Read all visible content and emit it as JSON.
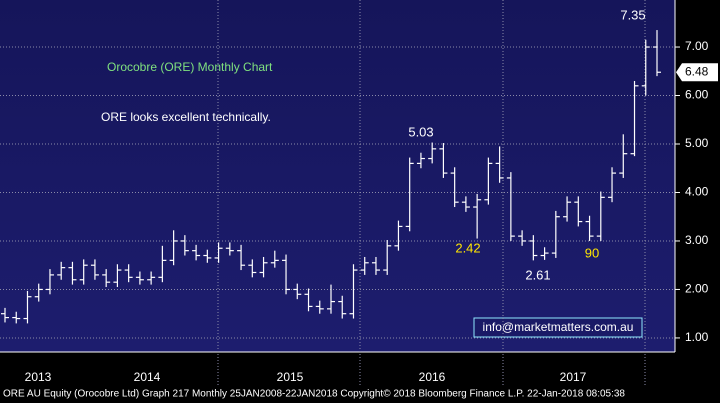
{
  "chart_data": {
    "type": "ohlc",
    "title": "Orocobre (ORE) Monthly Chart",
    "subtitle": "ORE looks excellent technically.",
    "footer": "ORE AU Equity (Orocobre Ltd) Graph 217  Monthly 25JAN2008-22JAN2018  Copyright© 2018 Bloomberg Finance L.P.  22-Jan-2018 08:05:38",
    "watermark": "info@marketmatters.com.au",
    "color": "#ffffff",
    "open": [
      1.5,
      1.42,
      1.4,
      1.85,
      2.0,
      2.3,
      2.45,
      2.2,
      2.5,
      2.3,
      2.15,
      2.4,
      2.25,
      2.2,
      2.25,
      2.6,
      3.0,
      2.8,
      2.7,
      2.65,
      2.85,
      2.8,
      2.5,
      2.35,
      2.55,
      2.6,
      2.0,
      1.9,
      1.65,
      1.6,
      1.75,
      1.5,
      2.4,
      2.55,
      2.4,
      2.9,
      3.3,
      4.6,
      4.7,
      4.9,
      4.4,
      3.8,
      3.7,
      3.85,
      4.6,
      4.3,
      3.1,
      3.0,
      2.7,
      2.75,
      3.5,
      3.8,
      3.4,
      3.1,
      3.9,
      4.4,
      4.8,
      6.2,
      7.0
    ],
    "high": [
      1.62,
      1.54,
      1.97,
      2.12,
      2.42,
      2.57,
      2.57,
      2.62,
      2.62,
      2.42,
      2.52,
      2.52,
      2.37,
      2.37,
      2.9,
      3.22,
      3.12,
      2.92,
      2.82,
      2.97,
      2.97,
      2.92,
      2.62,
      2.67,
      2.8,
      2.72,
      2.12,
      2.02,
      1.77,
      2.1,
      1.87,
      2.52,
      2.67,
      2.67,
      3.02,
      3.42,
      4.72,
      4.82,
      5.03,
      5.02,
      4.52,
      3.92,
      3.97,
      4.72,
      4.95,
      4.42,
      3.22,
      3.12,
      2.87,
      3.62,
      3.92,
      3.92,
      3.52,
      4.02,
      4.52,
      5.2,
      6.3,
      7.15,
      7.35
    ],
    "low": [
      1.32,
      1.3,
      1.3,
      1.75,
      1.9,
      2.2,
      2.1,
      2.1,
      2.2,
      2.05,
      2.05,
      2.15,
      2.1,
      2.1,
      2.15,
      2.5,
      2.7,
      2.6,
      2.55,
      2.55,
      2.7,
      2.4,
      2.25,
      2.25,
      2.45,
      1.9,
      1.8,
      1.55,
      1.5,
      1.5,
      1.4,
      1.4,
      2.3,
      2.3,
      2.3,
      2.8,
      3.2,
      4.5,
      4.6,
      4.3,
      3.7,
      3.6,
      3.05,
      3.75,
      4.2,
      3.0,
      2.9,
      2.6,
      2.61,
      2.65,
      3.4,
      3.3,
      3.0,
      3.0,
      3.8,
      4.3,
      4.75,
      6.0,
      6.4
    ],
    "close": [
      1.42,
      1.4,
      1.85,
      2.0,
      2.3,
      2.45,
      2.2,
      2.5,
      2.3,
      2.15,
      2.4,
      2.25,
      2.2,
      2.25,
      2.6,
      3.0,
      2.8,
      2.7,
      2.65,
      2.85,
      2.8,
      2.5,
      2.35,
      2.55,
      2.6,
      2.0,
      1.9,
      1.65,
      1.6,
      1.75,
      1.5,
      2.4,
      2.55,
      2.4,
      2.9,
      3.3,
      4.6,
      4.7,
      4.9,
      4.4,
      3.8,
      3.7,
      3.85,
      4.6,
      4.3,
      3.1,
      3.0,
      2.7,
      2.75,
      3.5,
      3.8,
      3.4,
      3.1,
      3.9,
      4.4,
      4.8,
      6.2,
      7.0,
      6.48
    ],
    "last_price": 6.48,
    "xlabels": [
      "2013",
      "2014",
      "2015",
      "2016",
      "2017"
    ],
    "annotations": [
      {
        "text": "7.35",
        "color": "#ffffff"
      },
      {
        "text": "5.03",
        "color": "#ffffff"
      },
      {
        "text": "2.42",
        "color": "#ffe600"
      },
      {
        "text": "2.61",
        "color": "#ffffff"
      },
      {
        "text": "90",
        "color": "#ffe600"
      }
    ],
    "ylim": [
      0.71,
      7.97
    ],
    "yticks": [
      {
        "value": 1,
        "label": "1.00"
      },
      {
        "value": 2,
        "label": "2.00"
      },
      {
        "value": 3,
        "label": "3.00"
      },
      {
        "value": 4,
        "label": "4.00"
      },
      {
        "value": 5,
        "label": "5.00"
      },
      {
        "value": 6,
        "label": "6.00"
      },
      {
        "value": 7,
        "label": "7.00"
      }
    ],
    "grid": true
  }
}
